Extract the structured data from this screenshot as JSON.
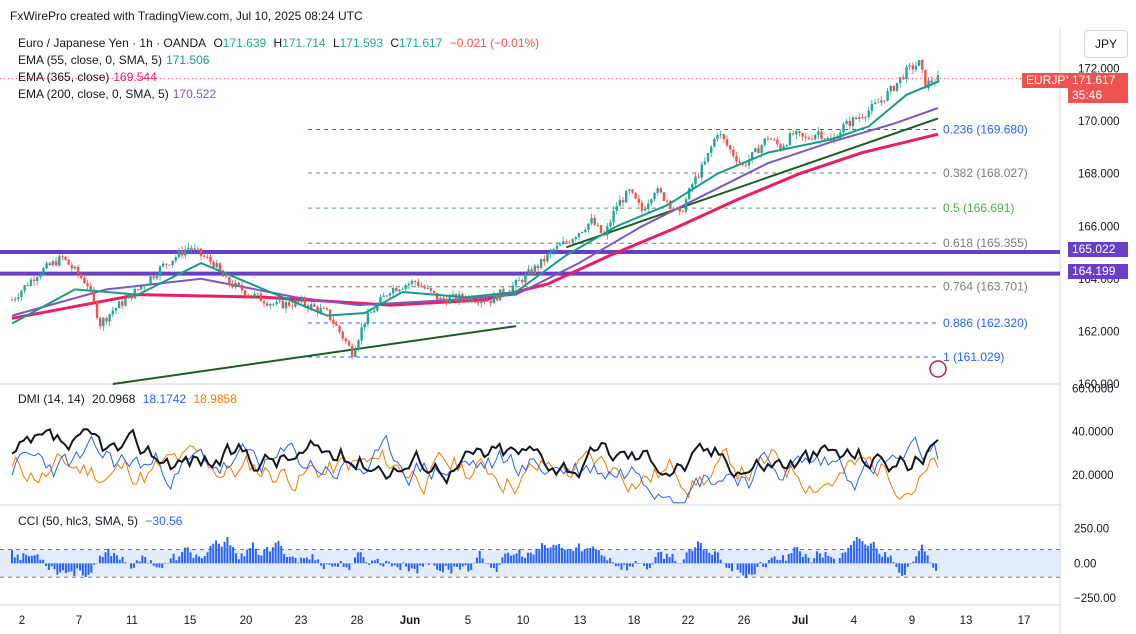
{
  "header": {
    "credit": "FxWirePro created with TradingView.com, Jul 10, 2025 08:24 UTC"
  },
  "symbol_button": "JPY",
  "main_legend": {
    "instrument": "Euro / Japanese Yen · 1h · OANDA",
    "open_label": "O",
    "open": "171.639",
    "high_label": "H",
    "high": "171.714",
    "low_label": "L",
    "low": "171.593",
    "close_label": "C",
    "close": "171.617",
    "change": "−0.021 (−0.01%)",
    "ema55_label": "EMA (55, close, 0, SMA, 5)",
    "ema55_value": "171.506",
    "ema365_label": "EMA (365, close)",
    "ema365_value": "169.544",
    "ema200_label": "EMA (200, close, 0, SMA, 5)",
    "ema200_value": "170.522"
  },
  "price_tag": {
    "symbol": "EURJPY",
    "price": "171.617",
    "countdown": "35:46"
  },
  "level_tags": [
    "165.022",
    "164.199"
  ],
  "colors": {
    "price": "#1a9b8a",
    "ema365": "#e91e63",
    "ema200": "#7e57c2",
    "trend": "#1b5e20",
    "hlines": "#6a3fc8",
    "di_plus": "#2962ff",
    "di_minus": "#f57c00",
    "adx": "#131722",
    "cci": "#2962ff",
    "up": "#26a69a",
    "down": "#ef5350"
  },
  "dmi_legend": {
    "label": "DMI (14, 14)",
    "adx": "20.0968",
    "di_plus": "18.1742",
    "di_minus": "18.9858"
  },
  "cci_legend": {
    "label": "CCI (50, hlc3, SMA, 5)",
    "value": "−30.56"
  },
  "chart_data": {
    "type": "line",
    "title": "Euro / Japanese Yen · 1h · OANDA",
    "price_axis_ticks": [
      "172.000",
      "170.000",
      "168.000",
      "166.000",
      "164.000",
      "162.000",
      "160.000"
    ],
    "y_range": [
      160,
      172.4
    ],
    "date_ticks": [
      "2",
      "7",
      "11",
      "15",
      "20",
      "23",
      "28",
      "Jun",
      "5",
      "10",
      "13",
      "18",
      "22",
      "26",
      "Jul",
      "4",
      "9",
      "13",
      "17"
    ],
    "price_path": [
      [
        0,
        163.2
      ],
      [
        4,
        164.2
      ],
      [
        8,
        164.8
      ],
      [
        12,
        163.8
      ],
      [
        14,
        162.3
      ],
      [
        16,
        162.8
      ],
      [
        20,
        163.6
      ],
      [
        24,
        164.5
      ],
      [
        28,
        165.2
      ],
      [
        32,
        164.6
      ],
      [
        34,
        163.9
      ],
      [
        38,
        163.4
      ],
      [
        42,
        163.0
      ],
      [
        46,
        163.1
      ],
      [
        50,
        162.7
      ],
      [
        52,
        162.0
      ],
      [
        54,
        161.2
      ],
      [
        56,
        162.4
      ],
      [
        58,
        163.0
      ],
      [
        60,
        163.6
      ],
      [
        64,
        163.9
      ],
      [
        68,
        163.2
      ],
      [
        72,
        163.3
      ],
      [
        76,
        163.2
      ],
      [
        80,
        163.8
      ],
      [
        84,
        164.6
      ],
      [
        86,
        165.1
      ],
      [
        88,
        165.4
      ],
      [
        90,
        165.8
      ],
      [
        92,
        166.2
      ],
      [
        94,
        165.6
      ],
      [
        96,
        166.8
      ],
      [
        98,
        167.3
      ],
      [
        100,
        166.6
      ],
      [
        102,
        167.4
      ],
      [
        104,
        167.0
      ],
      [
        106,
        166.4
      ],
      [
        108,
        167.6
      ],
      [
        110,
        168.4
      ],
      [
        112,
        169.6
      ],
      [
        114,
        168.9
      ],
      [
        116,
        168.3
      ],
      [
        118,
        168.8
      ],
      [
        120,
        169.4
      ],
      [
        122,
        169.0
      ],
      [
        124,
        169.5
      ],
      [
        126,
        169.3
      ],
      [
        128,
        169.6
      ],
      [
        130,
        169.2
      ],
      [
        132,
        169.8
      ],
      [
        134,
        170.1
      ],
      [
        136,
        170.4
      ],
      [
        138,
        170.8
      ],
      [
        140,
        171.3
      ],
      [
        142,
        171.9
      ],
      [
        144,
        172.2
      ],
      [
        145,
        171.4
      ],
      [
        146,
        171.5
      ],
      [
        147,
        171.6
      ]
    ],
    "ema55": [
      [
        0,
        162.3
      ],
      [
        10,
        163.6
      ],
      [
        20,
        163.4
      ],
      [
        30,
        164.6
      ],
      [
        40,
        163.6
      ],
      [
        50,
        162.6
      ],
      [
        56,
        162.7
      ],
      [
        62,
        163.5
      ],
      [
        72,
        163.3
      ],
      [
        80,
        163.5
      ],
      [
        88,
        164.9
      ],
      [
        96,
        166.0
      ],
      [
        104,
        166.8
      ],
      [
        112,
        168.0
      ],
      [
        120,
        168.8
      ],
      [
        130,
        169.3
      ],
      [
        136,
        169.8
      ],
      [
        142,
        171.0
      ],
      [
        147,
        171.5
      ]
    ],
    "ema200": [
      [
        0,
        162.6
      ],
      [
        15,
        163.6
      ],
      [
        30,
        164.0
      ],
      [
        45,
        163.3
      ],
      [
        55,
        163.0
      ],
      [
        70,
        163.2
      ],
      [
        80,
        163.4
      ],
      [
        90,
        164.6
      ],
      [
        100,
        166.0
      ],
      [
        110,
        167.2
      ],
      [
        120,
        168.4
      ],
      [
        130,
        169.2
      ],
      [
        140,
        169.9
      ],
      [
        147,
        170.5
      ]
    ],
    "ema365": [
      [
        0,
        162.5
      ],
      [
        20,
        163.4
      ],
      [
        40,
        163.3
      ],
      [
        60,
        163.0
      ],
      [
        75,
        163.2
      ],
      [
        85,
        163.8
      ],
      [
        95,
        164.9
      ],
      [
        105,
        165.9
      ],
      [
        115,
        167.0
      ],
      [
        125,
        168.0
      ],
      [
        135,
        168.8
      ],
      [
        147,
        169.5
      ]
    ],
    "trendlines": [
      {
        "from": [
          16,
          160.0
        ],
        "to": [
          80,
          162.2
        ]
      },
      {
        "from": [
          88,
          165.2
        ],
        "to": [
          147,
          170.1
        ]
      }
    ],
    "horizontal_levels": [
      165.022,
      164.199
    ],
    "fibonacci": [
      {
        "ratio": "0.236",
        "value": 169.68,
        "label": "0.236 (169.680)",
        "color": "#2962ff"
      },
      {
        "ratio": "0.382",
        "value": 168.027,
        "label": "0.382 (168.027)",
        "color": "#787b86"
      },
      {
        "ratio": "0.5",
        "value": 166.691,
        "label": "0.5 (166.691)",
        "color": "#4caf50"
      },
      {
        "ratio": "0.618",
        "value": 165.355,
        "label": "0.618 (165.355)",
        "color": "#787b86"
      },
      {
        "ratio": "0.764",
        "value": 163.701,
        "label": "0.764 (163.701)",
        "color": "#787b86"
      },
      {
        "ratio": "0.886",
        "value": 162.32,
        "label": "0.886 (162.320)",
        "color": "#2962ff"
      },
      {
        "ratio": "1",
        "value": 161.029,
        "label": "1 (161.029)",
        "color": "#2962ff"
      }
    ],
    "dmi_axis_ticks": [
      "60.0000",
      "40.0000",
      "20.0000"
    ],
    "dmi_range": [
      6,
      62
    ],
    "cci_axis_ticks": [
      "250.00",
      "0.00",
      "−250.00"
    ],
    "cci_range": [
      -300,
      420
    ],
    "cci_bands": [
      100,
      -100
    ]
  }
}
